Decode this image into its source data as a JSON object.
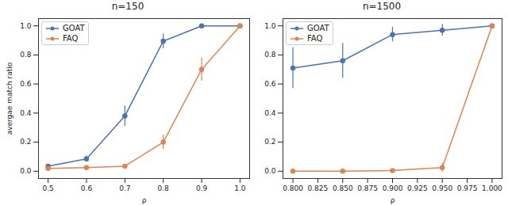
{
  "chart_data": [
    {
      "type": "line",
      "title": "n=150",
      "xlabel": "ρ",
      "ylabel": "avergae match ratio",
      "x": [
        0.5,
        0.6,
        0.7,
        0.8,
        0.9,
        1.0
      ],
      "series": [
        {
          "name": "GOAT",
          "color": "#4c72b0",
          "marker": "o",
          "values": [
            0.035,
            0.085,
            0.38,
            0.895,
            1.0,
            1.0
          ],
          "errors": [
            0.01,
            0.02,
            0.07,
            0.05,
            0.0,
            0.0
          ]
        },
        {
          "name": "FAQ",
          "color": "#dd8452",
          "marker": "o",
          "values": [
            0.02,
            0.025,
            0.035,
            0.2,
            0.7,
            1.0
          ],
          "errors": [
            0.005,
            0.005,
            0.01,
            0.05,
            0.08,
            0.0
          ]
        }
      ],
      "xlim": [
        0.475,
        1.025
      ],
      "xticks": [
        0.5,
        0.6,
        0.7,
        0.8,
        0.9,
        {
          "value": 1.0,
          "label": "1.0"
        }
      ],
      "ylim": [
        -0.05,
        1.05
      ],
      "yticks": [
        {
          "value": 0,
          "label": "0.0"
        },
        0.2,
        0.4,
        0.6,
        0.8,
        {
          "value": 1.0,
          "label": "1.0"
        }
      ],
      "grid": false,
      "legend": "upper left"
    },
    {
      "type": "line",
      "title": "n=1500",
      "xlabel": "ρ",
      "x": [
        0.8,
        0.85,
        0.9,
        0.95,
        1.0
      ],
      "series": [
        {
          "name": "GOAT",
          "color": "#4c72b0",
          "marker": "o",
          "values": [
            0.71,
            0.76,
            0.94,
            0.97,
            1.0
          ],
          "errors": [
            0.14,
            0.12,
            0.05,
            0.04,
            0.0
          ]
        },
        {
          "name": "FAQ",
          "color": "#dd8452",
          "marker": "o",
          "values": [
            0.0,
            0.0,
            0.005,
            0.025,
            1.0
          ],
          "errors": [
            0.0,
            0.0,
            0.0,
            0.03,
            0.0
          ]
        }
      ],
      "xlim": [
        0.79,
        1.01
      ],
      "xticks": [
        {
          "value": 0.8,
          "label": "0.800"
        },
        {
          "value": 0.825,
          "label": "0.825"
        },
        {
          "value": 0.85,
          "label": "0.850"
        },
        {
          "value": 0.875,
          "label": "0.875"
        },
        {
          "value": 0.9,
          "label": "0.900"
        },
        {
          "value": 0.925,
          "label": "0.925"
        },
        {
          "value": 0.95,
          "label": "0.950"
        },
        {
          "value": 0.975,
          "label": "0.975"
        },
        {
          "value": 1.0,
          "label": "1.000"
        }
      ],
      "ylim": [
        -0.05,
        1.05
      ],
      "yticks": [
        {
          "value": 0,
          "label": "0.0"
        },
        0.2,
        0.4,
        0.6,
        0.8,
        {
          "value": 1.0,
          "label": "1.0"
        }
      ],
      "grid": false,
      "legend": "upper left"
    }
  ]
}
